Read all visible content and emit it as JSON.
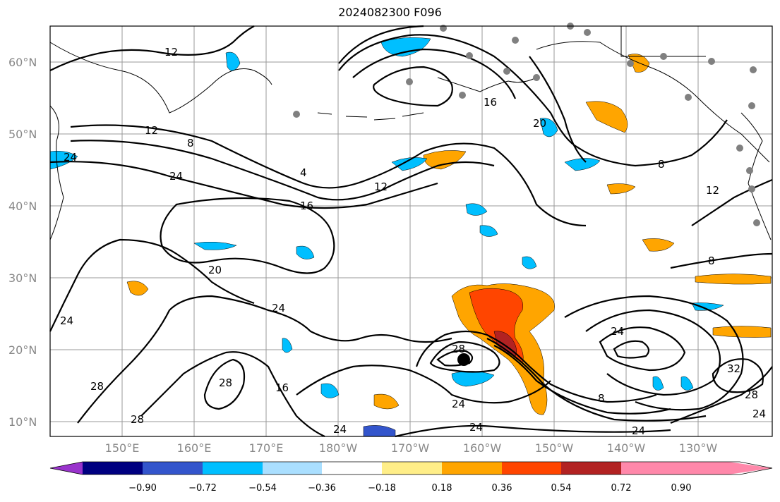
{
  "title": "2024082300 F096",
  "map": {
    "lat_labels": [
      "60°N",
      "50°N",
      "40°N",
      "30°N",
      "20°N",
      "10°N"
    ],
    "lon_labels": [
      "150°E",
      "160°E",
      "170°E",
      "180°W",
      "170°W",
      "160°W",
      "150°W",
      "140°W",
      "130°W"
    ],
    "contour_labels": [
      "12",
      "12",
      "8",
      "24",
      "24",
      "4",
      "16",
      "12",
      "16",
      "20",
      "8",
      "12",
      "8",
      "20",
      "24",
      "24",
      "28",
      "28",
      "28",
      "16",
      "24",
      "24",
      "28",
      "24",
      "8",
      "24",
      "32",
      "28",
      "24",
      "24"
    ]
  },
  "colorbar": {
    "colors": [
      "#9933cc",
      "#000080",
      "#3355cc",
      "#00bfff",
      "#aadfff",
      "#ffffff",
      "#ffee88",
      "#ffa500",
      "#ff4500",
      "#b22222",
      "#ff88aa"
    ],
    "ticks": [
      "−0.90",
      "−0.72",
      "−0.54",
      "−0.36",
      "−0.18",
      "0.18",
      "0.36",
      "0.54",
      "0.72",
      "0.90"
    ]
  }
}
